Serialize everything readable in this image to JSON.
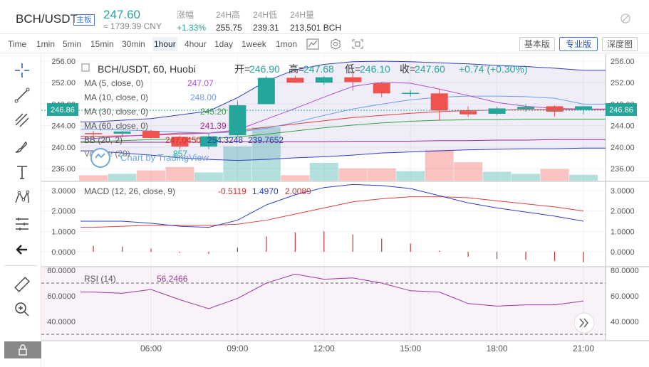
{
  "header": {
    "pair": "BCH/USDT",
    "badge": "主板",
    "price": "247.60",
    "cny": "≈ 1739.39 CNY",
    "stats": [
      {
        "label": "涨幅",
        "value": "+1.33%",
        "up": true
      },
      {
        "label": "24H高",
        "value": "255.75",
        "up": false
      },
      {
        "label": "24H低",
        "value": "239.31",
        "up": false
      },
      {
        "label": "24H量",
        "value": "213,501 BCH",
        "up": false
      }
    ]
  },
  "timeframes": {
    "labels": [
      "Time",
      "1min",
      "5min",
      "15min",
      "30min",
      "1hour",
      "4hour",
      "1day",
      "1week",
      "1mon"
    ],
    "active": "1hour"
  },
  "view_buttons": [
    "基本版",
    "专业版",
    "深度图"
  ],
  "tools": [
    "crosshair-icon",
    "trend-line-icon",
    "fib-icon",
    "brush-icon",
    "text-icon",
    "pattern-icon",
    "measure-lines-icon",
    "back-arrow-icon",
    "ruler-icon",
    "zoom-in-icon",
    "lock-icon"
  ],
  "legend": {
    "symbol": "BCH/USDT, 60, Huobi",
    "open_label": "开=",
    "open": "246.90",
    "high_label": "高=",
    "high": "247.68",
    "low_label": "低=",
    "low": "246.10",
    "close_label": "收=",
    "close": "247.60",
    "change": "+0.74 (+0.30%)",
    "ma": [
      {
        "label": "MA (5, close, 0)",
        "value": "247.07",
        "color": "#b04fd0"
      },
      {
        "label": "MA (10, close, 0)",
        "value": "248.00",
        "color": "#6f9ee8"
      },
      {
        "label": "MA (30, close, 0)",
        "value": "245.20",
        "color": "#3aa043"
      },
      {
        "label": "MA (60, close, 0)",
        "value": "241.39",
        "color": "#a02a90"
      }
    ],
    "bb": {
      "label": "BB (20, 2)",
      "v1": "247.0450",
      "v2": "254.3248",
      "v3": "239.7652"
    },
    "volume": {
      "label": "Volume (20)",
      "value": "857"
    },
    "watermark": "Chart by TradingView"
  },
  "current_price_tag": "246.86",
  "macd_legend": {
    "label": "MACD (12, 26, close, 9)",
    "hist": "-0.5119",
    "macd": "1.4970",
    "signal": "2.0089"
  },
  "rsi_legend": {
    "label": "RSI (14)",
    "value": "56.2466"
  },
  "chart_data": {
    "type": "candlestick",
    "x_labels": [
      "06:00",
      "09:00",
      "12:00",
      "15:00",
      "18:00",
      "21:00"
    ],
    "x_label_hours": [
      6,
      9,
      12,
      15,
      18,
      21
    ],
    "candle_hours": [
      4,
      5,
      6,
      7,
      8,
      9,
      10,
      11,
      12,
      13,
      14,
      15,
      16,
      17,
      18,
      19,
      20,
      21
    ],
    "candles": [
      {
        "o": 242.6,
        "h": 243.0,
        "l": 241.9,
        "c": 242.4
      },
      {
        "o": 242.5,
        "h": 243.0,
        "l": 241.8,
        "c": 242.9
      },
      {
        "o": 243.0,
        "h": 243.2,
        "l": 241.6,
        "c": 241.7
      },
      {
        "o": 241.9,
        "h": 242.1,
        "l": 239.6,
        "c": 240.1
      },
      {
        "o": 240.1,
        "h": 242.5,
        "l": 239.6,
        "c": 242.0
      },
      {
        "o": 242.2,
        "h": 248.6,
        "l": 242.0,
        "c": 247.8
      },
      {
        "o": 248.0,
        "h": 253.2,
        "l": 248.0,
        "c": 252.9
      },
      {
        "o": 252.9,
        "h": 253.3,
        "l": 251.9,
        "c": 252.0
      },
      {
        "o": 252.0,
        "h": 253.2,
        "l": 251.6,
        "c": 253.0
      },
      {
        "o": 253.0,
        "h": 253.9,
        "l": 250.5,
        "c": 252.1
      },
      {
        "o": 251.9,
        "h": 252.1,
        "l": 249.3,
        "c": 250.0
      },
      {
        "o": 250.0,
        "h": 250.6,
        "l": 249.4,
        "c": 250.1
      },
      {
        "o": 250.0,
        "h": 250.9,
        "l": 245.0,
        "c": 246.8
      },
      {
        "o": 246.7,
        "h": 247.6,
        "l": 245.6,
        "c": 246.1
      },
      {
        "o": 246.2,
        "h": 247.5,
        "l": 245.9,
        "c": 247.2
      },
      {
        "o": 247.1,
        "h": 248.0,
        "l": 246.6,
        "c": 247.5
      },
      {
        "o": 247.6,
        "h": 247.8,
        "l": 245.7,
        "c": 246.6
      },
      {
        "o": 246.9,
        "h": 247.7,
        "l": 246.1,
        "c": 247.6
      }
    ],
    "volume": [
      800,
      1000,
      1500,
      2000,
      1200,
      5000,
      7800,
      800,
      2600,
      1800,
      1800,
      1400,
      4500,
      2700,
      1300,
      1000,
      1700,
      857
    ],
    "ma5": [
      241.6,
      242.0,
      242.3,
      242.6,
      242.6,
      243.2,
      245.2,
      247.2,
      249.3,
      251.3,
      252.1,
      251.9,
      250.8,
      249.6,
      248.3,
      247.6,
      247.2,
      247.1
    ],
    "ma10": [
      243.3,
      243.2,
      243.0,
      242.8,
      242.6,
      242.8,
      243.5,
      244.6,
      245.9,
      247.1,
      248.0,
      248.8,
      249.3,
      249.5,
      249.5,
      249.4,
      249.1,
      248.0
    ],
    "ma30": [
      241.0,
      241.2,
      241.4,
      241.5,
      241.6,
      241.9,
      242.4,
      243.0,
      243.6,
      244.1,
      244.5,
      244.8,
      245.0,
      245.1,
      245.1,
      245.2,
      245.2,
      245.2
    ],
    "ma60": [
      240.9,
      240.9,
      240.9,
      240.9,
      240.9,
      241.0,
      241.0,
      241.0,
      241.0,
      241.1,
      241.1,
      241.1,
      241.2,
      241.2,
      241.3,
      241.3,
      241.4,
      241.4
    ],
    "bb_upper": [
      244.7,
      245.0,
      245.3,
      246.0,
      246.7,
      249.2,
      252.3,
      254.4,
      255.4,
      255.9,
      256.0,
      255.9,
      255.7,
      255.5,
      255.2,
      255.0,
      254.7,
      254.3
    ],
    "bb_mid": [
      242.0,
      242.1,
      242.2,
      242.4,
      242.6,
      243.1,
      243.7,
      244.3,
      244.9,
      245.5,
      245.9,
      246.3,
      246.6,
      246.8,
      246.9,
      247.0,
      247.0,
      247.0
    ],
    "bb_lower": [
      239.3,
      238.9,
      238.5,
      238.0,
      237.7,
      237.5,
      237.7,
      238.0,
      238.2,
      238.5,
      238.9,
      239.1,
      239.3,
      239.5,
      239.6,
      239.7,
      239.7,
      239.8
    ],
    "y_ticks_main": [
      256,
      252,
      248,
      244,
      240,
      236
    ],
    "macd": [
      1.5,
      1.5,
      1.4,
      1.25,
      1.2,
      1.55,
      2.3,
      2.8,
      3.15,
      3.3,
      3.25,
      3.1,
      2.75,
      2.4,
      2.15,
      1.95,
      1.75,
      1.5
    ],
    "macd_signal": [
      1.2,
      1.25,
      1.3,
      1.3,
      1.3,
      1.35,
      1.55,
      1.85,
      2.15,
      2.45,
      2.6,
      2.7,
      2.7,
      2.65,
      2.5,
      2.35,
      2.2,
      2.0
    ],
    "macd_hist": [
      0.3,
      0.25,
      0.15,
      -0.05,
      -0.1,
      0.2,
      0.75,
      0.95,
      1.0,
      0.85,
      0.65,
      0.4,
      0.05,
      -0.25,
      -0.35,
      -0.4,
      -0.45,
      -0.51
    ],
    "y_ticks_macd": [
      3,
      2,
      1,
      0
    ],
    "y_tick_labels_macd": [
      "3.0000",
      "2.0000",
      "1.0000",
      "0.0000"
    ],
    "rsi": [
      63,
      62,
      65,
      57,
      50,
      58,
      70,
      77,
      73,
      74,
      70,
      64,
      63,
      54,
      52,
      53,
      53,
      56
    ],
    "y_ticks_rsi": [
      80,
      60,
      40
    ],
    "y_tick_labels_rsi": [
      "80.0000",
      "60.0000",
      "40.0000"
    ],
    "rsi_bands": [
      70,
      30
    ]
  }
}
